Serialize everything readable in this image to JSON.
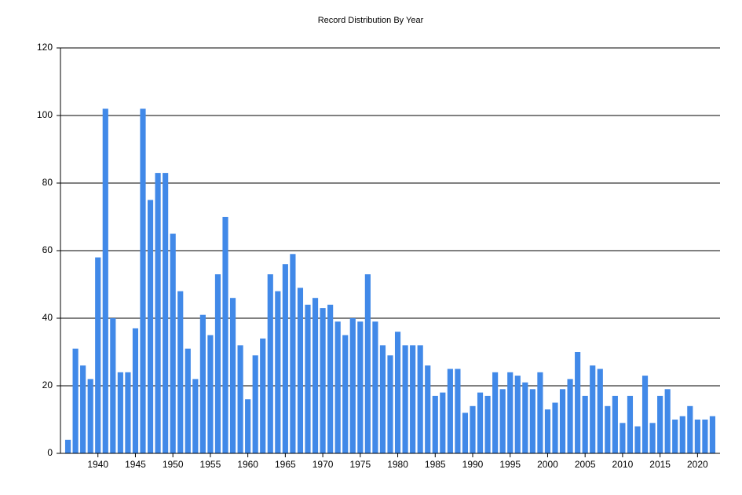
{
  "chart_data": {
    "type": "bar",
    "title": "Record Distribution By Year",
    "x": [
      1936,
      1937,
      1938,
      1939,
      1940,
      1941,
      1942,
      1943,
      1944,
      1945,
      1946,
      1947,
      1948,
      1949,
      1950,
      1951,
      1952,
      1953,
      1954,
      1955,
      1956,
      1957,
      1958,
      1959,
      1960,
      1961,
      1962,
      1963,
      1964,
      1965,
      1966,
      1967,
      1968,
      1969,
      1970,
      1971,
      1972,
      1973,
      1974,
      1975,
      1976,
      1977,
      1978,
      1979,
      1980,
      1981,
      1982,
      1983,
      1984,
      1985,
      1986,
      1987,
      1988,
      1989,
      1990,
      1991,
      1992,
      1993,
      1994,
      1995,
      1996,
      1997,
      1998,
      1999,
      2000,
      2001,
      2002,
      2003,
      2004,
      2005,
      2006,
      2007,
      2008,
      2009,
      2010,
      2011,
      2012,
      2013,
      2014,
      2015,
      2016,
      2017,
      2018,
      2019,
      2020,
      2021,
      2022
    ],
    "values": [
      4,
      31,
      26,
      22,
      58,
      102,
      40,
      24,
      24,
      37,
      102,
      75,
      83,
      83,
      65,
      48,
      31,
      22,
      41,
      35,
      53,
      70,
      46,
      32,
      16,
      29,
      34,
      53,
      48,
      56,
      59,
      49,
      44,
      46,
      43,
      44,
      39,
      35,
      40,
      39,
      53,
      39,
      32,
      29,
      36,
      32,
      32,
      32,
      26,
      17,
      18,
      25,
      25,
      12,
      14,
      18,
      17,
      24,
      19,
      24,
      23,
      21,
      19,
      24,
      13,
      15,
      19,
      22,
      30,
      17,
      26,
      25,
      14,
      17,
      9,
      17,
      8,
      23,
      9,
      17,
      19,
      10,
      11,
      14,
      10,
      10,
      11
    ],
    "color": "#4189e8",
    "xlim": [
      1935,
      2023
    ],
    "xticks": [
      1940,
      1945,
      1950,
      1955,
      1960,
      1965,
      1970,
      1975,
      1980,
      1985,
      1990,
      1995,
      2000,
      2005,
      2010,
      2015,
      2020
    ],
    "ylim": [
      0,
      120
    ],
    "yticks": [
      0,
      20,
      40,
      60,
      80,
      100,
      120
    ],
    "grid": true
  }
}
